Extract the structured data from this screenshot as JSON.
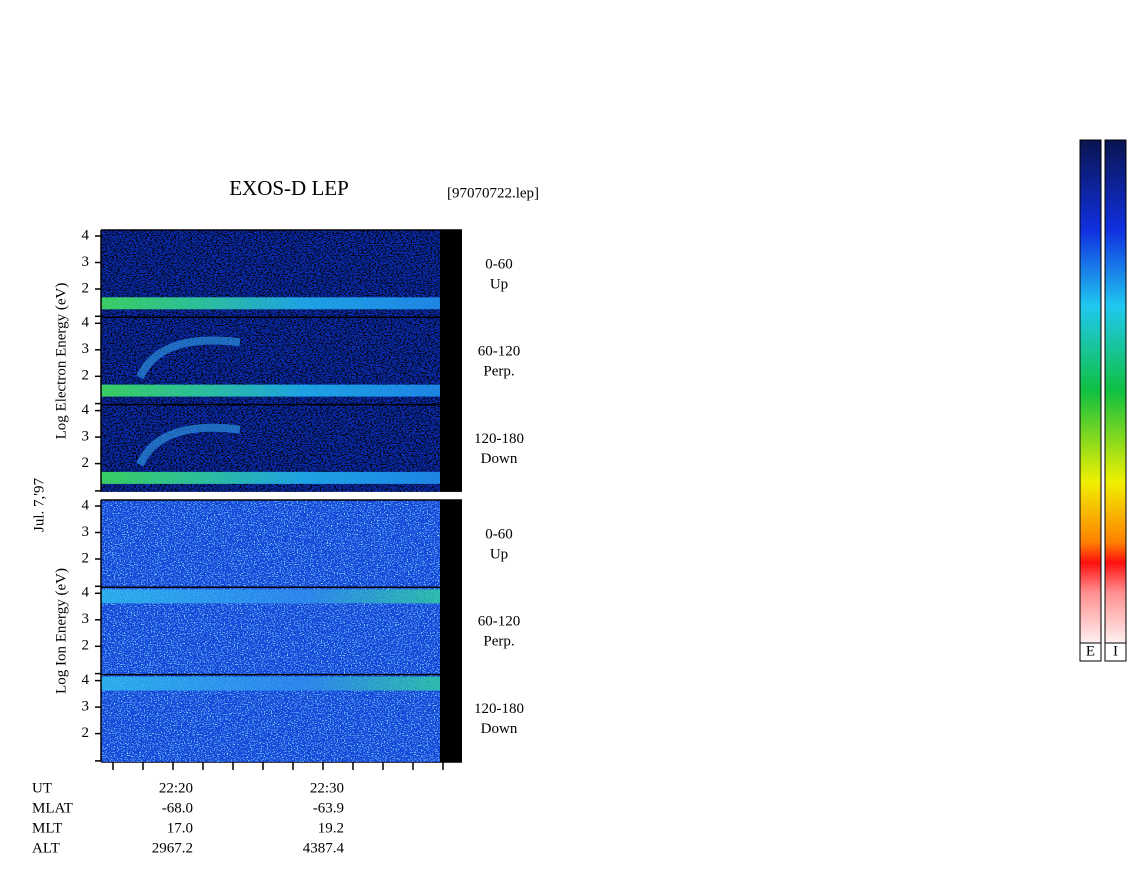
{
  "header": {
    "title": "EXOS-D LEP",
    "file": "[97070722.lep]"
  },
  "date": "Jul. 7,'97",
  "groups": [
    {
      "axis_label": "Log  Electron  Energy  (eV)"
    },
    {
      "axis_label": "Log  Ion  Energy  (eV)"
    }
  ],
  "yticks": [
    4,
    3,
    2
  ],
  "pitch_angles": [
    {
      "range": "0-60",
      "direction": "Up"
    },
    {
      "range": "60-120",
      "direction": "Perp."
    },
    {
      "range": "120-180",
      "direction": "Down"
    }
  ],
  "time_axis": {
    "rows": [
      "UT",
      "MLAT",
      "MLT",
      "ALT"
    ],
    "columns": [
      [
        "22:20",
        "-68.0",
        "17.0",
        "2967.2"
      ],
      [
        "22:30",
        "-63.9",
        "19.2",
        "4387.4"
      ]
    ]
  },
  "colorbars": [
    "E",
    "I"
  ]
}
